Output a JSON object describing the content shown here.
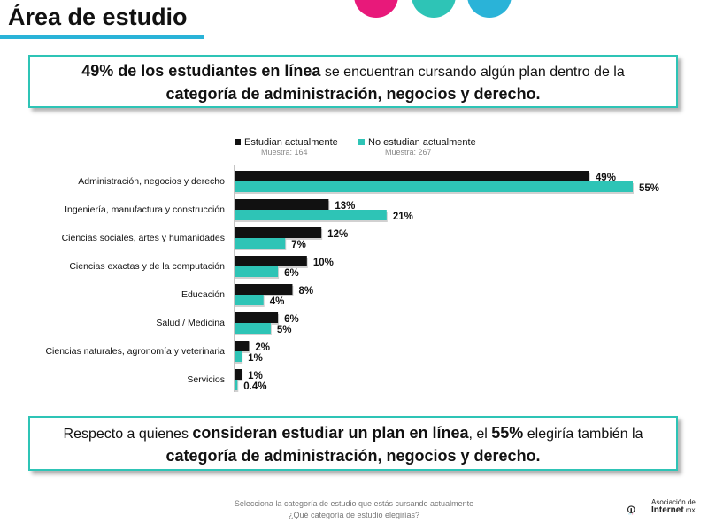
{
  "header": {
    "title": "Área de estudio"
  },
  "colors": {
    "accent_line": "#2ab3d8",
    "dot_pink": "#e8197a",
    "dot_teal": "#2ec4b6",
    "dot_blue": "#2ab3d8",
    "series_current": "#111111",
    "series_not": "#2ec4b6"
  },
  "callout_top": {
    "part1": "49% de los estudiantes en línea",
    "part2": " se encuentran cursando algún plan dentro de la",
    "part3": "categoría de administración, negocios y derecho."
  },
  "callout_bottom": {
    "part1": "Respecto a quienes ",
    "part2": "consideran estudiar un plan en línea",
    "part3": ", el ",
    "part4": "55%",
    "part5": " elegiría también la",
    "part6": "categoría de administración, negocios y derecho."
  },
  "chart_data": {
    "type": "bar",
    "orientation": "horizontal",
    "categories": [
      "Administración, negocios y derecho",
      "Ingeniería, manufactura y construcción",
      "Ciencias sociales, artes y humanidades",
      "Ciencias exactas y de la computación",
      "Educación",
      "Salud / Medicina",
      "Ciencias naturales, agronomía y veterinaria",
      "Servicios"
    ],
    "series": [
      {
        "name": "Estudian actualmente",
        "sample": "Muestra: 164",
        "color": "#111111",
        "values": [
          49,
          13,
          12,
          10,
          8,
          6,
          2,
          1
        ],
        "labels": [
          "49%",
          "13%",
          "12%",
          "10%",
          "8%",
          "6%",
          "2%",
          "1%"
        ]
      },
      {
        "name": "No estudian actualmente",
        "sample": "Muestra: 267",
        "color": "#2ec4b6",
        "values": [
          55,
          21,
          7,
          6,
          4,
          5,
          1,
          0.4
        ],
        "labels": [
          "55%",
          "21%",
          "7%",
          "6%",
          "4%",
          "5%",
          "1%",
          "0.4%"
        ]
      }
    ],
    "xlim": [
      0,
      55
    ],
    "legend_position": "top"
  },
  "footer": {
    "line1": "Selecciona la categoría de estudio que estás cursando actualmente",
    "line2": "¿Qué categoría de estudio elegirías?"
  },
  "logo": {
    "line1": "Asociación de",
    "line2": "Internet",
    "line2_suffix": ".mx"
  }
}
